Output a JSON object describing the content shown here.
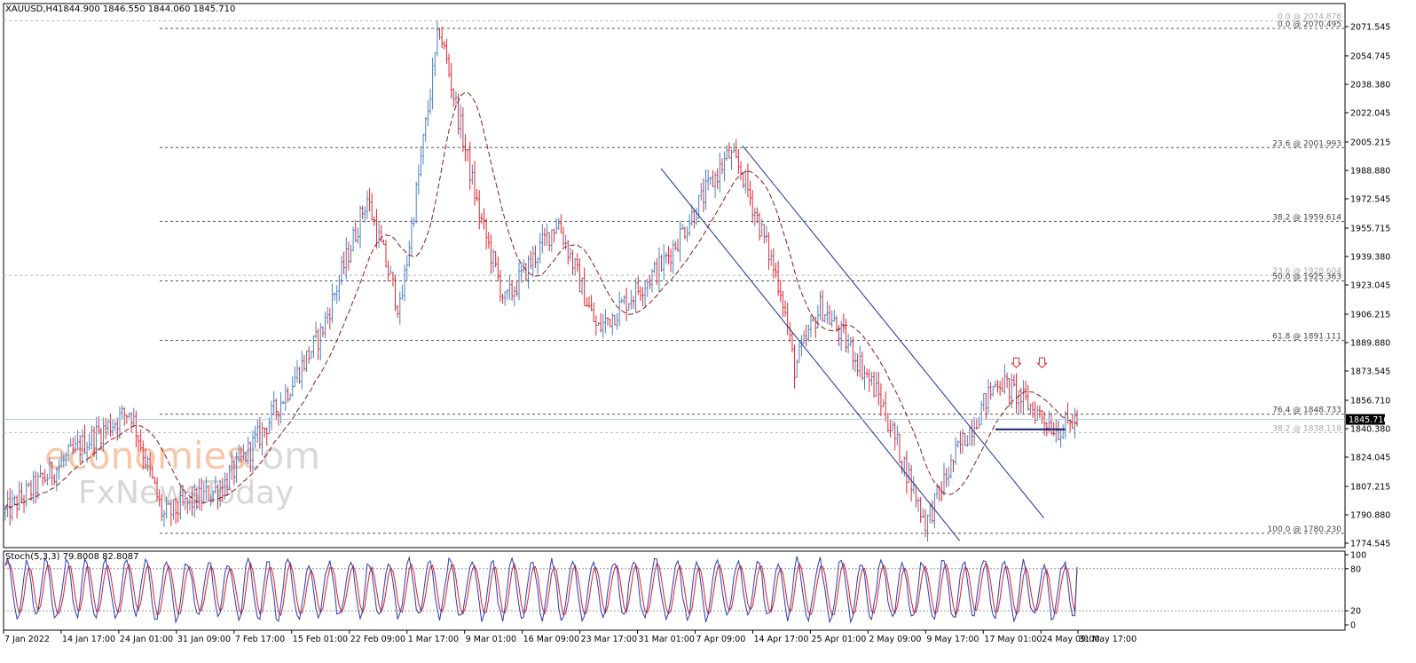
{
  "header": {
    "symbol": "XAUUSD,H4",
    "ohlc": "1844.900 1846.550 1844.060 1845.710"
  },
  "watermark": {
    "brand_colored": "economies",
    "brand_suffix": ".com",
    "brand_second_line": "FxNewsToday"
  },
  "colors": {
    "bull": "#4a7fc1",
    "bear": "#e0262e",
    "ma": "#8b1a1a",
    "channel": "#1f2c9c",
    "grid_dash": "#555555",
    "price_label_bg": "#000000",
    "price_label_fg": "#ffffff",
    "stoch_main": "#2a3db0",
    "stoch_signal": "#d81f2a",
    "watermark_orange": "#f7c7a8"
  },
  "chart_data": [
    {
      "type": "candlestick",
      "title": "XAUUSD,H4",
      "ylim": [
        1774.545,
        2081.0
      ],
      "price_axis_ticks": [
        "2071.545",
        "2054.745",
        "2038.380",
        "2022.045",
        "2005.215",
        "1988.880",
        "1972.545",
        "1955.715",
        "1939.380",
        "1923.045",
        "1906.215",
        "1889.880",
        "1873.545",
        "1856.710",
        "1840.380",
        "1824.045",
        "1807.215",
        "1790.880",
        "1774.545"
      ],
      "current_price": "1845.710",
      "time_axis_labels": [
        "7 Jan 2022",
        "14 Jan 17:00",
        "24 Jan 01:00",
        "31 Jan 09:00",
        "7 Feb 17:00",
        "15 Feb 01:00",
        "22 Feb 09:00",
        "1 Mar 17:00",
        "9 Mar 01:00",
        "16 Mar 09:00",
        "23 Mar 17:00",
        "31 Mar 01:00",
        "7 Apr 09:00",
        "14 Apr 17:00",
        "25 Apr 01:00",
        "2 May 09:00",
        "9 May 17:00",
        "17 May 01:00",
        "24 May 09:00",
        "31 May 17:00"
      ],
      "price_path_approx": [
        {
          "t": 0,
          "price": 1792
        },
        {
          "t": 0.06,
          "price": 1832
        },
        {
          "t": 0.095,
          "price": 1851
        },
        {
          "t": 0.12,
          "price": 1790
        },
        {
          "t": 0.165,
          "price": 1807
        },
        {
          "t": 0.195,
          "price": 1838
        },
        {
          "t": 0.24,
          "price": 1895
        },
        {
          "t": 0.275,
          "price": 1973
        },
        {
          "t": 0.3,
          "price": 1908
        },
        {
          "t": 0.33,
          "price": 2071
        },
        {
          "t": 0.36,
          "price": 1965
        },
        {
          "t": 0.38,
          "price": 1913
        },
        {
          "t": 0.42,
          "price": 1960
        },
        {
          "t": 0.45,
          "price": 1897
        },
        {
          "t": 0.5,
          "price": 1935
        },
        {
          "t": 0.55,
          "price": 1998
        },
        {
          "t": 0.56,
          "price": 1988
        },
        {
          "t": 0.59,
          "price": 1920
        },
        {
          "t": 0.6,
          "price": 1875
        },
        {
          "t": 0.62,
          "price": 1911
        },
        {
          "t": 0.645,
          "price": 1884
        },
        {
          "t": 0.665,
          "price": 1858
        },
        {
          "t": 0.7,
          "price": 1786
        },
        {
          "t": 0.725,
          "price": 1829
        },
        {
          "t": 0.755,
          "price": 1869
        },
        {
          "t": 0.775,
          "price": 1856
        },
        {
          "t": 0.8,
          "price": 1840
        },
        {
          "t": 0.815,
          "price": 1845.71
        }
      ],
      "horizontal_levels": [
        {
          "label": "0.0 @ 2074.876",
          "price": 2074.876,
          "faded": true
        },
        {
          "label": "0.0 @ 2070.495",
          "price": 2070.495,
          "faded": false
        },
        {
          "label": "23.6 @ 2001.993",
          "price": 2001.993,
          "faded": false
        },
        {
          "label": "38.2 @ 1959.614",
          "price": 1959.614,
          "faded": false
        },
        {
          "label": "23.6 @ 1928.604",
          "price": 1928.604,
          "faded": true
        },
        {
          "label": "50.0 @ 1925.363",
          "price": 1925.363,
          "faded": false
        },
        {
          "label": "61.8 @ 1891.111",
          "price": 1891.111,
          "faded": false
        },
        {
          "label": "76.4 @ 1848.733",
          "price": 1848.733,
          "faded": false
        },
        {
          "label": "38.2 @ 1838.118",
          "price": 1838.118,
          "faded": true
        },
        {
          "label": "100.0 @ 1780.230",
          "price": 1780.23,
          "faded": false
        }
      ],
      "annotations": {
        "support_level": 1840,
        "arrow_down_markers": 2,
        "channel": "descending channel from Apr 14 high to May lows"
      },
      "grid": false
    },
    {
      "type": "line",
      "title": "Stoch(5,3,3) 79.8008 82.8087",
      "ylim": [
        0,
        100
      ],
      "y_ticks": [
        "100",
        "80",
        "20",
        "0"
      ],
      "levels": [
        80,
        20
      ],
      "series": [
        {
          "name": "79.8008",
          "last": 79.8008
        },
        {
          "name": "82.8087",
          "last": 82.8087
        }
      ]
    }
  ]
}
